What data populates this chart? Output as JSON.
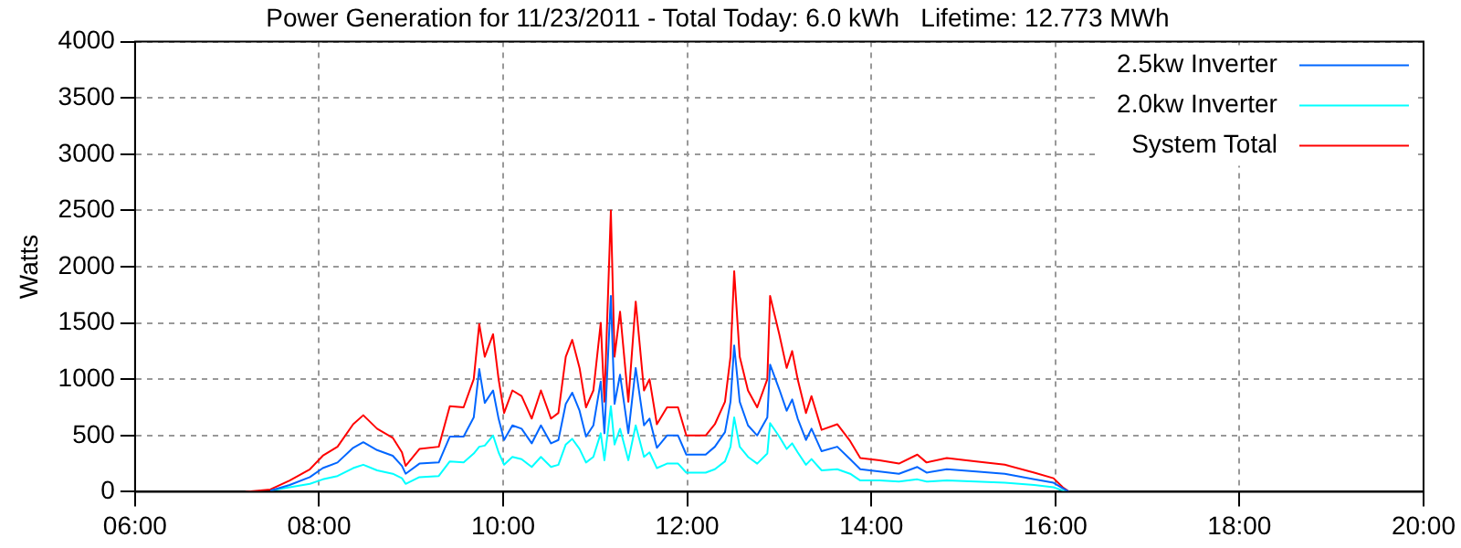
{
  "chart_data": {
    "type": "line",
    "title": "Power Generation for 11/23/2011 - Total Today: 6.0 kWh   Lifetime: 12.773 MWh",
    "ylabel": "Watts",
    "x": [
      7.2,
      7.47,
      7.68,
      7.9,
      8.04,
      8.2,
      8.37,
      8.48,
      8.63,
      8.8,
      8.9,
      8.94,
      9.09,
      9.3,
      9.42,
      9.57,
      9.68,
      9.74,
      9.8,
      9.89,
      9.95,
      10.01,
      10.1,
      10.2,
      10.31,
      10.41,
      10.52,
      10.6,
      10.68,
      10.75,
      10.83,
      10.9,
      10.98,
      11.06,
      11.1,
      11.17,
      11.21,
      11.27,
      11.36,
      11.44,
      11.53,
      11.59,
      11.67,
      11.78,
      11.9,
      11.99,
      12.2,
      12.3,
      12.41,
      12.47,
      12.51,
      12.57,
      12.66,
      12.76,
      12.87,
      12.9,
      13.0,
      13.08,
      13.14,
      13.2,
      13.29,
      13.35,
      13.46,
      13.63,
      13.77,
      13.88,
      14.09,
      14.3,
      14.5,
      14.6,
      14.82,
      15.14,
      15.45,
      15.77,
      15.98,
      16.08,
      16.15
    ],
    "series": [
      {
        "name": "2.5kw Inverter",
        "color": "#0066ff",
        "values": [
          null,
          10,
          60,
          130,
          210,
          260,
          390,
          440,
          370,
          320,
          230,
          160,
          250,
          260,
          490,
          490,
          660,
          1090,
          790,
          900,
          650,
          460,
          590,
          560,
          430,
          590,
          430,
          460,
          780,
          880,
          720,
          490,
          590,
          980,
          520,
          1740,
          780,
          1040,
          520,
          1100,
          590,
          650,
          390,
          500,
          500,
          330,
          330,
          400,
          530,
          800,
          1300,
          800,
          590,
          500,
          660,
          1130,
          910,
          720,
          820,
          650,
          460,
          560,
          360,
          400,
          290,
          200,
          180,
          160,
          220,
          170,
          200,
          180,
          160,
          110,
          80,
          30,
          0
        ]
      },
      {
        "name": "2.0kw Inverter",
        "color": "#00ffff",
        "values": [
          null,
          10,
          40,
          70,
          110,
          140,
          210,
          240,
          190,
          160,
          120,
          70,
          130,
          140,
          270,
          260,
          340,
          400,
          410,
          500,
          350,
          240,
          310,
          290,
          220,
          310,
          220,
          240,
          420,
          470,
          380,
          260,
          310,
          520,
          280,
          760,
          420,
          560,
          280,
          590,
          310,
          350,
          210,
          250,
          250,
          170,
          170,
          200,
          270,
          400,
          660,
          400,
          310,
          250,
          340,
          610,
          490,
          380,
          430,
          350,
          240,
          290,
          190,
          200,
          160,
          100,
          100,
          90,
          110,
          90,
          100,
          90,
          80,
          60,
          40,
          10,
          0
        ]
      },
      {
        "name": "System Total",
        "color": "#ff0000",
        "values": [
          0,
          20,
          100,
          200,
          320,
          400,
          600,
          680,
          560,
          480,
          350,
          230,
          380,
          400,
          760,
          750,
          1000,
          1490,
          1200,
          1400,
          1000,
          700,
          900,
          850,
          650,
          900,
          650,
          700,
          1200,
          1350,
          1100,
          750,
          900,
          1500,
          800,
          2500,
          1200,
          1600,
          800,
          1690,
          900,
          1000,
          600,
          750,
          750,
          500,
          500,
          600,
          800,
          1200,
          1960,
          1200,
          900,
          750,
          1000,
          1740,
          1400,
          1100,
          1250,
          1000,
          700,
          850,
          550,
          600,
          450,
          300,
          280,
          250,
          330,
          260,
          300,
          270,
          240,
          170,
          120,
          40,
          0
        ]
      }
    ],
    "xlim": [
      6,
      20
    ],
    "xticks": [
      {
        "value": 6,
        "label": "06:00"
      },
      {
        "value": 8,
        "label": "08:00"
      },
      {
        "value": 10,
        "label": "10:00"
      },
      {
        "value": 12,
        "label": "12:00"
      },
      {
        "value": 14,
        "label": "14:00"
      },
      {
        "value": 16,
        "label": "16:00"
      },
      {
        "value": 18,
        "label": "18:00"
      },
      {
        "value": 20,
        "label": "20:00"
      }
    ],
    "ylim": [
      0,
      4000
    ],
    "yticks": [
      0,
      500,
      1000,
      1500,
      2000,
      2500,
      3000,
      3500,
      4000
    ],
    "grid": true,
    "legend": "top right",
    "marker": "none",
    "line_style": "solid"
  }
}
